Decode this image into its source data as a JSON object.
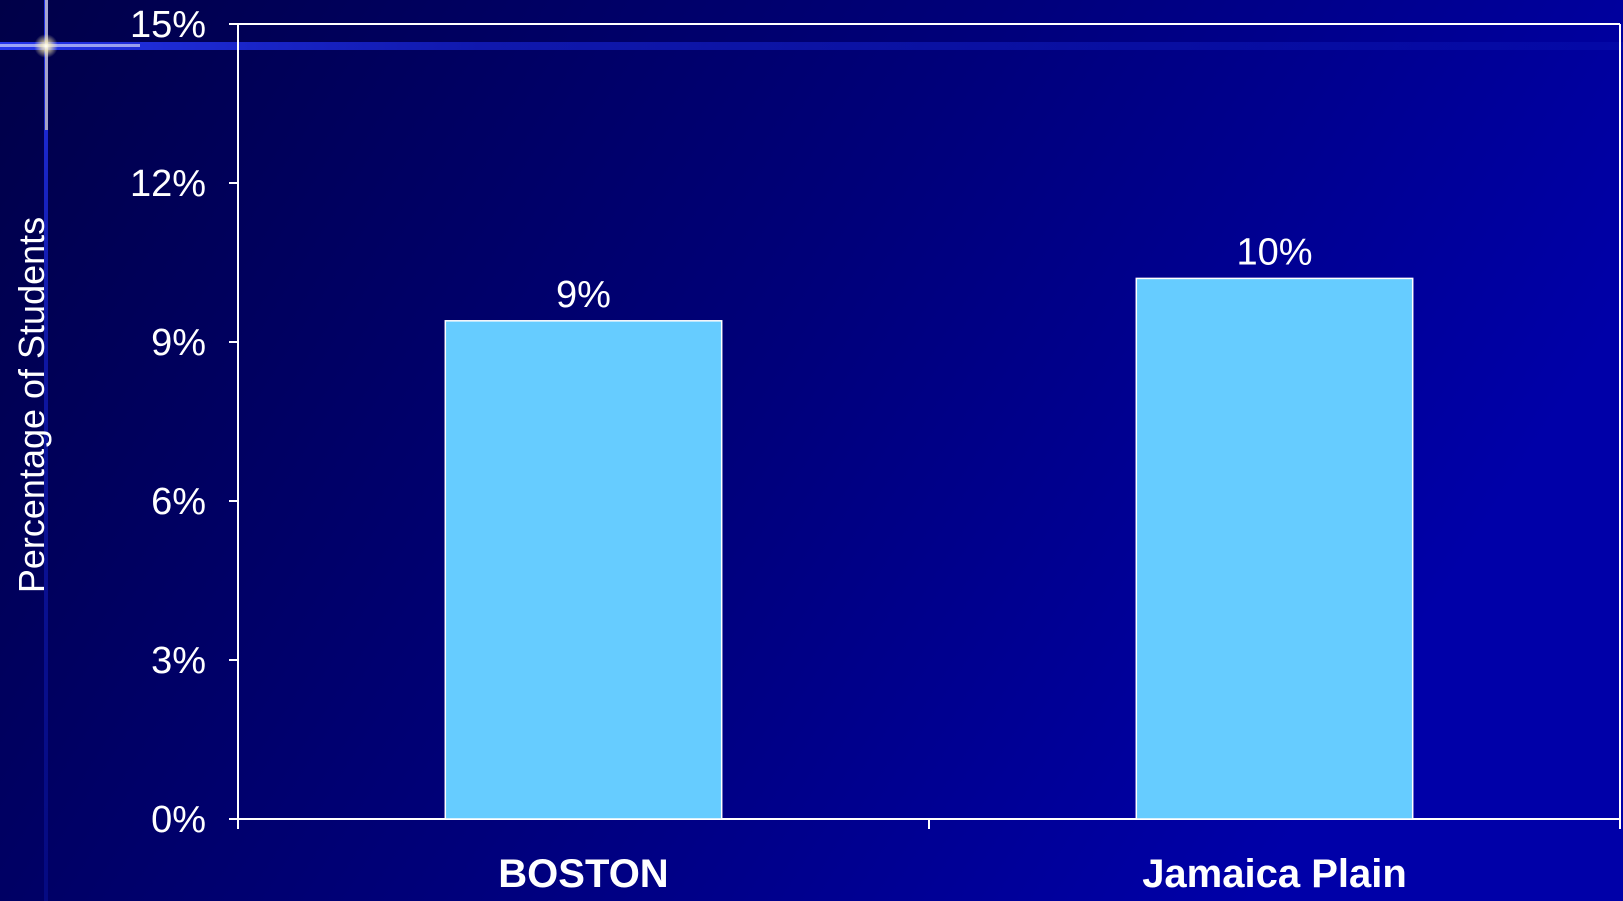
{
  "chart_data": {
    "type": "bar",
    "categories": [
      "BOSTON",
      "Jamaica Plain"
    ],
    "values": [
      9.4,
      10.2
    ],
    "data_labels": [
      "9%",
      "10%"
    ],
    "ylabel": "Percentage of  Students",
    "xlabel": "",
    "ylim": [
      0,
      15
    ],
    "yticks": [
      0,
      3,
      6,
      9,
      12,
      15
    ],
    "ytick_labels": [
      "0%",
      "3%",
      "6%",
      "9%",
      "12%",
      "15%"
    ],
    "grid": false,
    "legend": false
  },
  "colors": {
    "bar": "#66CCFF",
    "axis": "#FFFFFF",
    "text": "#FFFFFF",
    "background": "#000066"
  }
}
